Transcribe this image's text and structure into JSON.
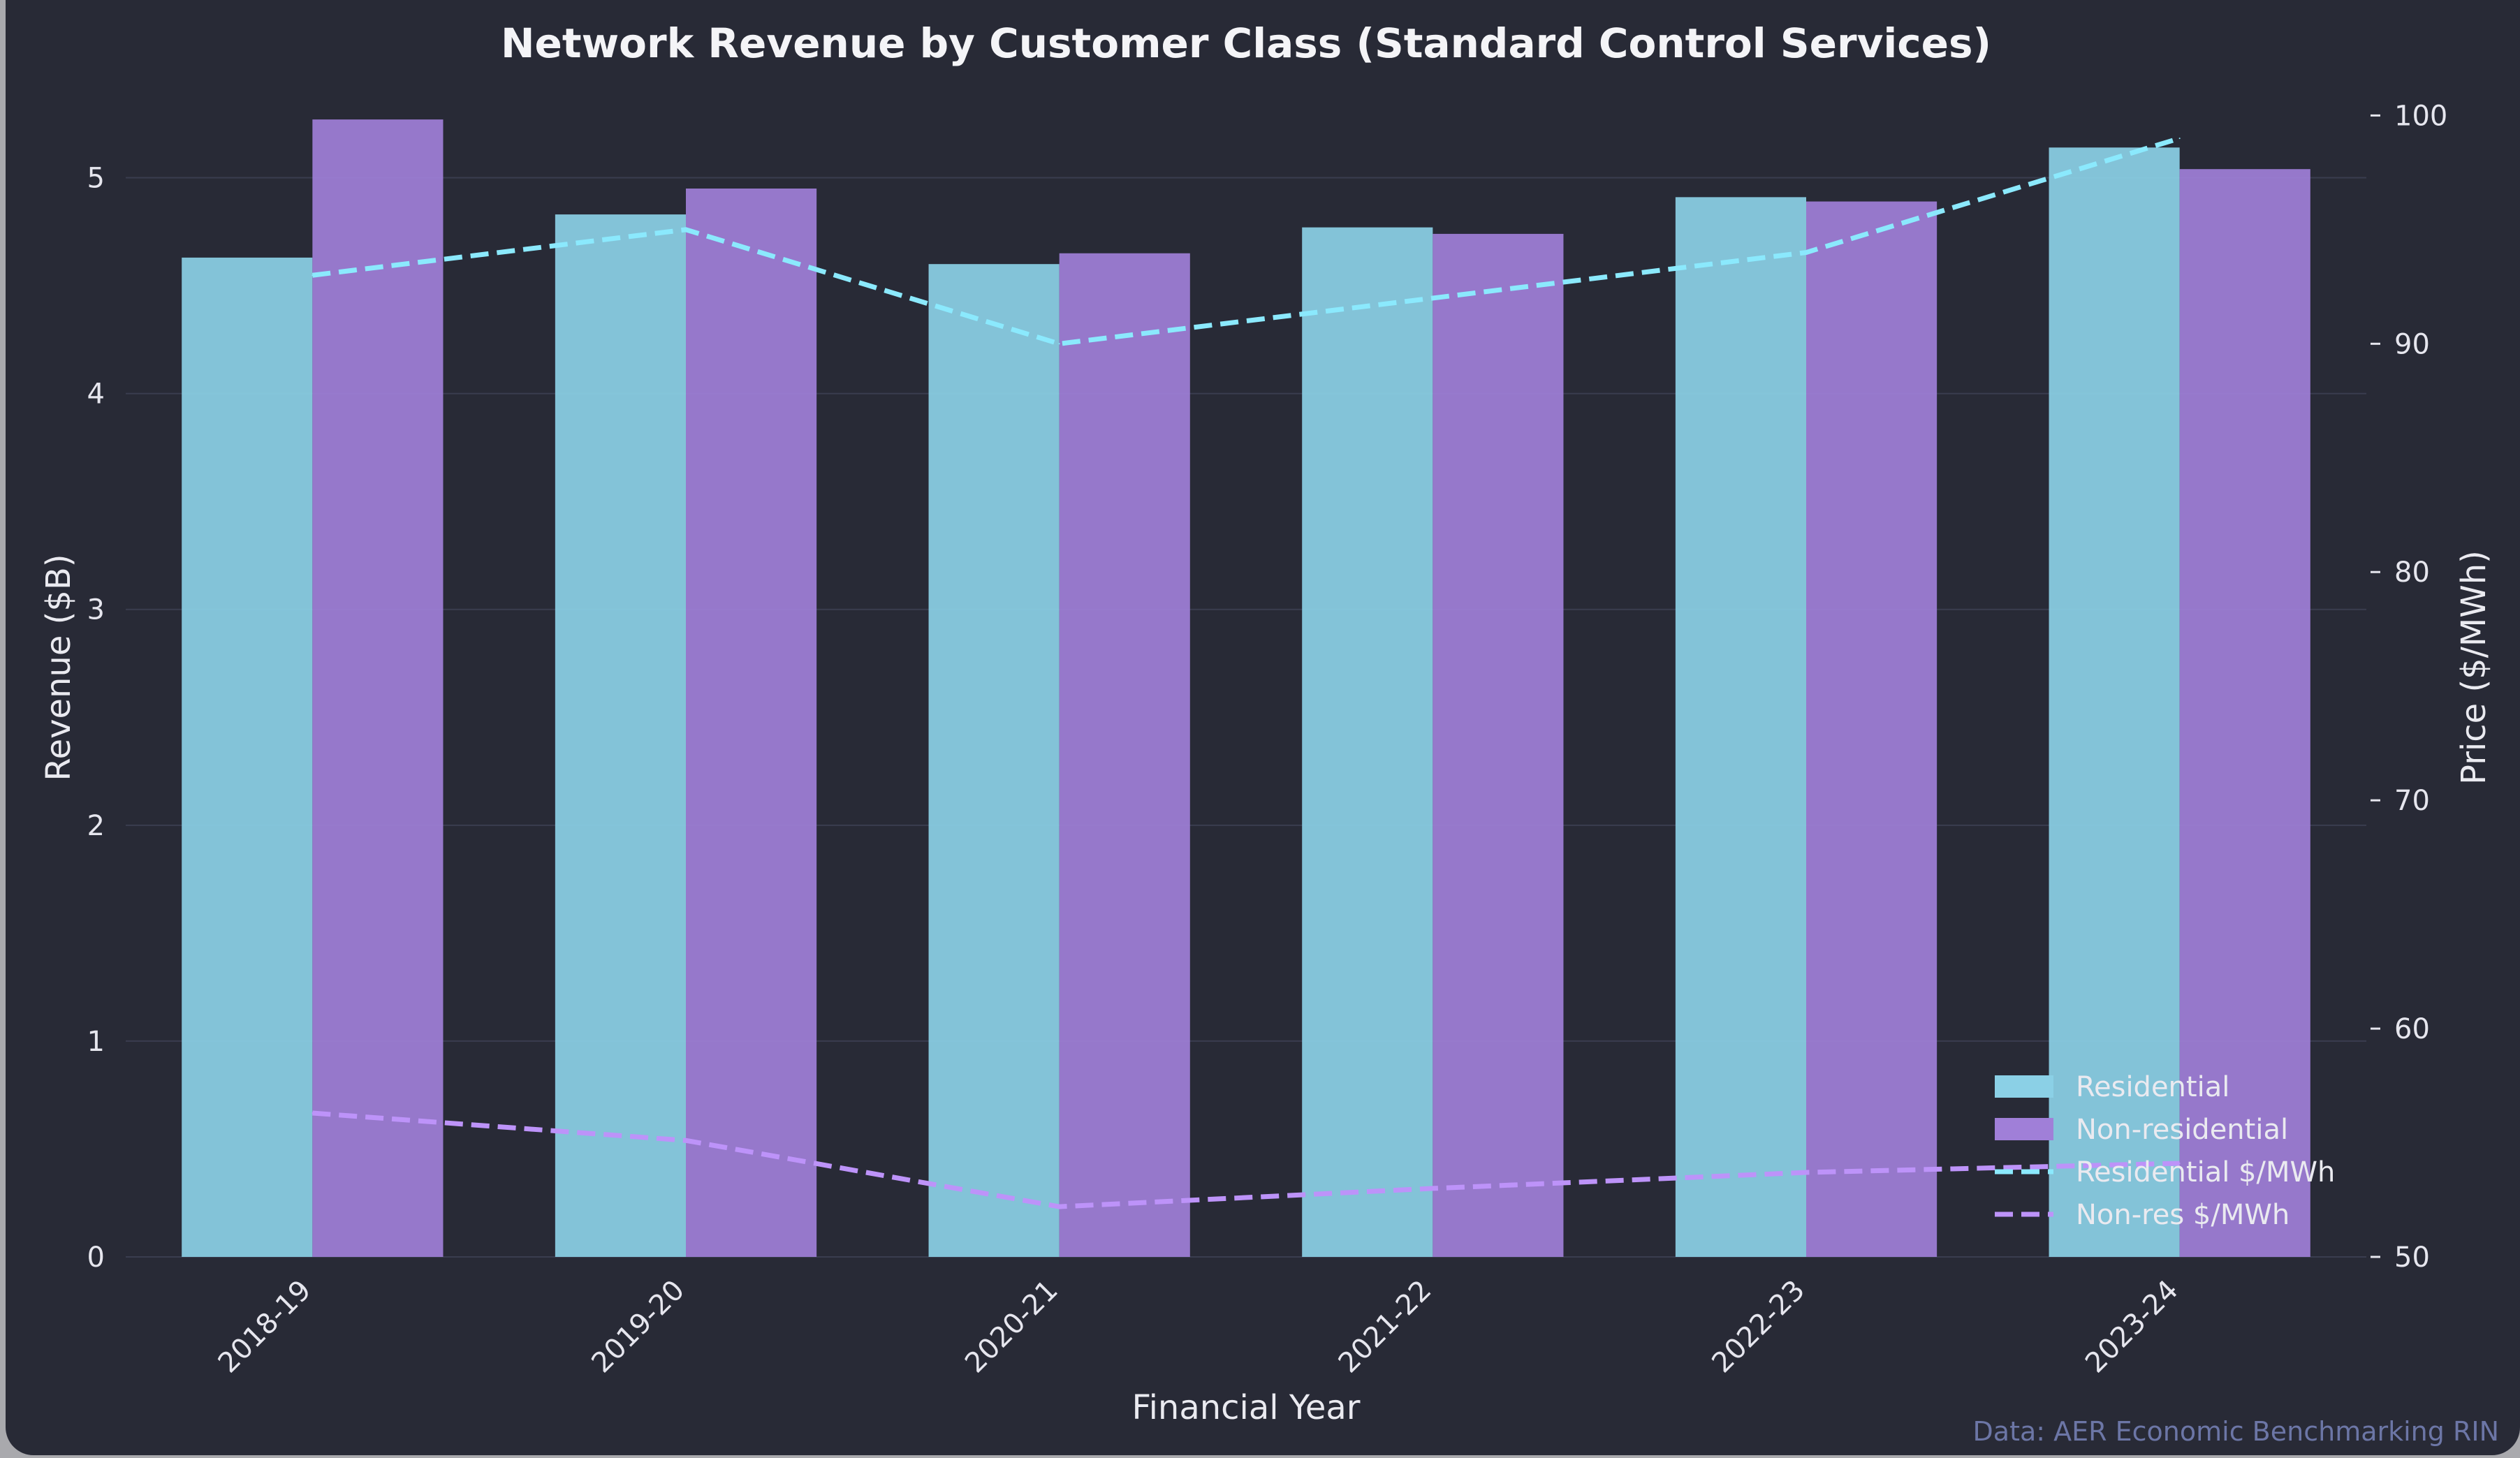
{
  "chart_data": {
    "type": "bar",
    "title": "Network Revenue by Customer Class (Standard Control Services)",
    "xlabel": "Financial Year",
    "ylabel": "Revenue ($B)",
    "y2label": "Price ($/MWh)",
    "categories": [
      "2018-19",
      "2019-20",
      "2020-21",
      "2021-22",
      "2022-23",
      "2023-24"
    ],
    "ylim": [
      0,
      5.5
    ],
    "yticks": [
      0,
      1,
      2,
      3,
      4,
      5
    ],
    "y2lim": [
      50,
      102
    ],
    "y2ticks": [
      50,
      60,
      70,
      80,
      90,
      100
    ],
    "grid": true,
    "legend_position": "lower-right",
    "series": [
      {
        "name": "Residential",
        "kind": "bar",
        "axis": "left",
        "color": "#8bd0e6",
        "values": [
          4.63,
          4.83,
          4.6,
          4.77,
          4.91,
          5.14
        ]
      },
      {
        "name": "Non-residential",
        "kind": "bar",
        "axis": "left",
        "color": "#a07fd8",
        "values": [
          5.27,
          4.95,
          4.65,
          4.74,
          4.89,
          5.04
        ]
      },
      {
        "name": "Residential $/MWh",
        "kind": "line",
        "style": "dashed",
        "axis": "right",
        "color": "#8be9fd",
        "values": [
          93,
          95,
          90,
          92,
          94,
          99
        ]
      },
      {
        "name": "Non-res $/MWh",
        "kind": "line",
        "style": "dashed",
        "axis": "right",
        "color": "#bd93f9",
        "values": [
          56.3,
          55.1,
          52.2,
          53,
          53.7,
          54.1
        ]
      }
    ],
    "source_note": "Data: AER Economic Benchmarking RIN"
  }
}
